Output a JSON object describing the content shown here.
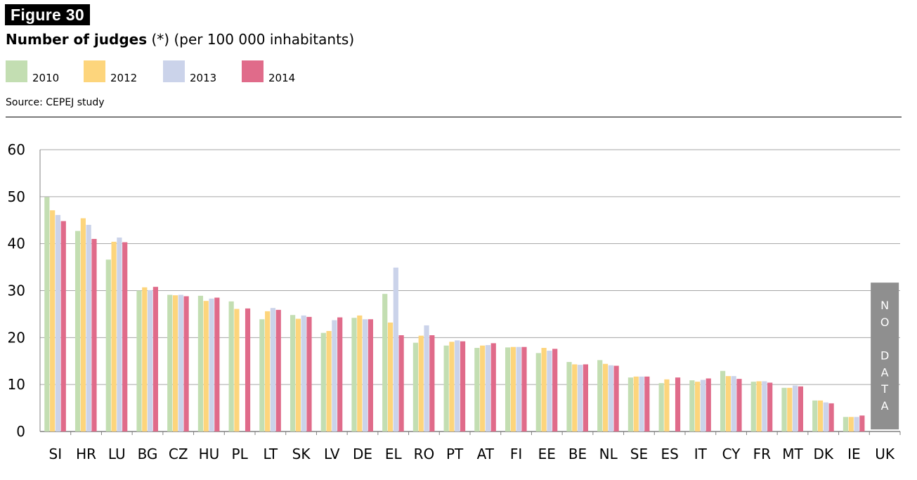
{
  "figure_label": "Figure 30",
  "title": "Number of judges",
  "title_suffix": " (*) (per 100 000 inhabitants)",
  "source": "Source: CEPEJ study",
  "colors": {
    "2010": "#c3deb2",
    "2012": "#fdd57c",
    "2013": "#cbd3ea",
    "2014": "#e06b8a",
    "grid": "#a6a6a6",
    "no_data": "#8f8f8f"
  },
  "chart_data": {
    "type": "bar",
    "title": "Number of judges (*) (per 100 000 inhabitants)",
    "xlabel": "",
    "ylabel": "",
    "ylim": [
      0,
      60
    ],
    "yticks": [
      0,
      10,
      20,
      30,
      40,
      50,
      60
    ],
    "grid": true,
    "legend_position": "top-left",
    "categories": [
      "SI",
      "HR",
      "LU",
      "BG",
      "CZ",
      "HU",
      "PL",
      "LT",
      "SK",
      "LV",
      "DE",
      "EL",
      "RO",
      "PT",
      "AT",
      "FI",
      "EE",
      "BE",
      "NL",
      "SE",
      "ES",
      "IT",
      "CY",
      "FR",
      "MT",
      "DK",
      "IE",
      "UK"
    ],
    "series": [
      {
        "name": "2010",
        "color": "#c3deb2",
        "values": [
          49.9,
          42.7,
          36.6,
          30.0,
          29.1,
          28.9,
          27.7,
          23.9,
          24.8,
          21.0,
          24.2,
          29.3,
          18.9,
          18.3,
          17.8,
          17.9,
          16.7,
          14.8,
          15.2,
          11.5,
          10.3,
          10.9,
          12.9,
          10.6,
          9.3,
          6.6,
          3.1,
          null
        ]
      },
      {
        "name": "2012",
        "color": "#fdd57c",
        "values": [
          47.1,
          45.4,
          40.4,
          30.7,
          29.0,
          27.8,
          26.1,
          25.6,
          24.0,
          21.4,
          24.7,
          23.2,
          20.4,
          19.1,
          18.3,
          18.0,
          17.8,
          14.3,
          14.4,
          11.7,
          11.1,
          10.6,
          11.8,
          10.7,
          9.3,
          6.6,
          3.1,
          null
        ]
      },
      {
        "name": "2013",
        "color": "#cbd3ea",
        "values": [
          46.1,
          44.0,
          41.3,
          30.1,
          29.1,
          28.3,
          null,
          26.3,
          24.7,
          23.7,
          23.9,
          34.9,
          22.6,
          19.4,
          18.4,
          18.0,
          17.2,
          14.2,
          14.1,
          11.7,
          null,
          11.0,
          11.8,
          10.7,
          9.8,
          6.2,
          3.1,
          null
        ]
      },
      {
        "name": "2014",
        "color": "#e06b8a",
        "values": [
          44.8,
          41.0,
          40.3,
          30.8,
          28.8,
          28.5,
          26.2,
          25.9,
          24.4,
          24.3,
          23.9,
          20.5,
          20.5,
          19.2,
          18.8,
          18.0,
          17.6,
          14.3,
          14.0,
          11.7,
          11.5,
          11.3,
          11.2,
          10.4,
          9.6,
          6.0,
          3.4,
          null
        ]
      }
    ],
    "annotations": [
      {
        "category": "UK",
        "text": "NO DATA",
        "value": 31.7
      }
    ]
  }
}
